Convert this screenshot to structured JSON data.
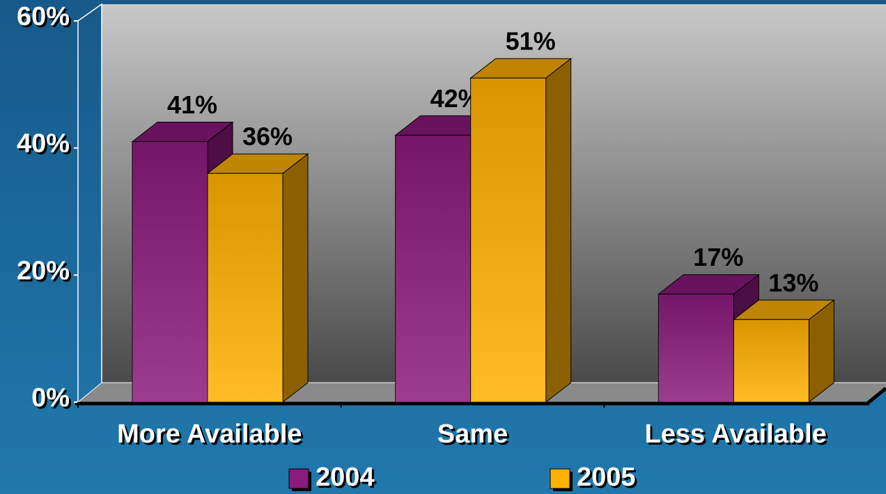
{
  "chart_data": {
    "type": "bar3d",
    "categories": [
      "More Available",
      "Same",
      "Less Available"
    ],
    "series": [
      {
        "name": "2004",
        "color": "#8a1a7c",
        "values": [
          41,
          42,
          17
        ],
        "value_labels": [
          "41%",
          "42%",
          "17%"
        ]
      },
      {
        "name": "2005",
        "color": "#ffb000",
        "values": [
          36,
          51,
          13
        ],
        "value_labels": [
          "36%",
          "51%",
          "13%"
        ]
      }
    ],
    "ylim": [
      0,
      60
    ],
    "yticks": [
      {
        "value": 0,
        "label": "0%"
      },
      {
        "value": 20,
        "label": "20%"
      },
      {
        "value": 40,
        "label": "40%"
      },
      {
        "value": 60,
        "label": "60%"
      }
    ],
    "legend": "bottom"
  }
}
